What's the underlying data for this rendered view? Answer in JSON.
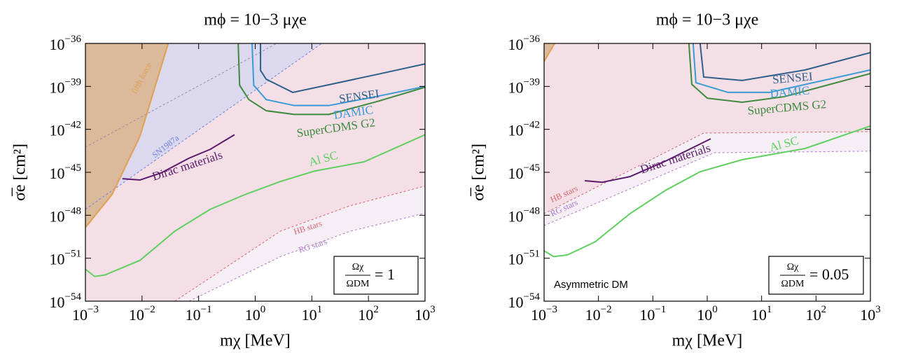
{
  "chart_data": [
    {
      "type": "line",
      "title": "mϕ = 10−3 μχe",
      "xlabel": "mχ [MeV]",
      "ylabel": "σ̅e [cm²]",
      "log_x": true,
      "log_y": true,
      "xlim": [
        0.001,
        1000
      ],
      "ylim": [
        1e-54,
        1e-36
      ],
      "xticks": [
        {
          "value": 0.001,
          "label": "10−3"
        },
        {
          "value": 0.01,
          "label": "10−2"
        },
        {
          "value": 0.1,
          "label": "10−1"
        },
        {
          "value": 1,
          "label": "100"
        },
        {
          "value": 10,
          "label": "101"
        },
        {
          "value": 100,
          "label": "102"
        },
        {
          "value": 1000,
          "label": "103"
        }
      ],
      "yticks": [
        {
          "value": 1e-36,
          "label": "10−36"
        },
        {
          "value": 1e-39,
          "label": "10−39"
        },
        {
          "value": 1e-42,
          "label": "10−42"
        },
        {
          "value": 1e-45,
          "label": "10−45"
        },
        {
          "value": 1e-48,
          "label": "10−48"
        },
        {
          "value": 1e-51,
          "label": "10−51"
        },
        {
          "value": 1e-54,
          "label": "10−54"
        }
      ],
      "series": [
        {
          "name": "RG stars",
          "color": "#b07acc",
          "style": "dashed",
          "fill": "#f5eef4",
          "x": [
            0.068,
            2.8,
            48,
            1000
          ],
          "values": [
            1e-54,
            1.3e-51,
            7.8e-50,
            1.4e-48
          ]
        },
        {
          "name": "HB stars",
          "color": "#d9646e",
          "style": "dashed",
          "fill": "#f3dfe5",
          "x": [
            0.038,
            2.8,
            48,
            1000
          ],
          "values": [
            1e-54,
            7.8e-50,
            4.7e-48,
            1.1e-46
          ]
        },
        {
          "name": "SN1987a",
          "color": "#6a7fe0",
          "style": "dashed",
          "fill": "#dcd8ee",
          "x": [
            0.001,
            15
          ],
          "values": [
            2.6e-48,
            1e-36
          ]
        },
        {
          "color": "#9a8a9e",
          "style": "dashed",
          "x": [
            0.001,
            2.4
          ],
          "values": [
            5.7e-44,
            1e-36
          ]
        },
        {
          "name": "fifth force",
          "color": "#e0a050",
          "style": "solid",
          "fill": "#dbb99b",
          "x": [
            0.001,
            0.00295,
            0.0092,
            0.029
          ],
          "values": [
            1.4e-49,
            2.8e-47,
            3.3e-43,
            1e-36
          ]
        },
        {
          "name": "Dirac materials",
          "color": "#5b1a6b",
          "style": "solid",
          "x": [
            0.0045,
            0.0092,
            0.022,
            0.068,
            0.16,
            0.43
          ],
          "values": [
            3.6e-46,
            2.9e-46,
            9.3e-46,
            9.8e-45,
            4e-44,
            4.2e-43
          ]
        },
        {
          "name": "Al SC",
          "color": "#5fcf5f",
          "style": "solid",
          "x": [
            0.001,
            0.00145,
            0.0022,
            0.0092,
            0.038,
            0.16,
            0.66,
            2.8,
            11,
            84,
            1000
          ],
          "values": [
            1.7e-52,
            5.3e-53,
            6.7e-53,
            7.1e-52,
            7.8e-50,
            2.6e-48,
            2.8e-47,
            2.3e-46,
            1.2e-45,
            5.4e-45,
            4.2e-43
          ]
        },
        {
          "name": "SENSEI",
          "color": "#2e5f8a",
          "style": "solid",
          "x": [
            1.24,
            1.24,
            1.56,
            4.6,
            20,
            150,
            1000
          ],
          "values": [
            1e-36,
            1.3e-38,
            3.2e-39,
            3.8e-40,
            1.3e-39,
            7.2e-39,
            3.7e-38
          ]
        },
        {
          "name": "DAMIC",
          "color": "#3b9bd6",
          "style": "solid",
          "x": [
            0.88,
            0.94,
            1.56,
            4.9,
            20,
            150,
            1000
          ],
          "values": [
            1e-36,
            1.2e-39,
            1.2e-40,
            4.6e-41,
            4.6e-41,
            2.1e-40,
            9.8e-40
          ]
        },
        {
          "name": "SuperCDMS G2",
          "color": "#3d8a3d",
          "style": "solid",
          "x": [
            0.5,
            0.53,
            0.77,
            1.56,
            4.9,
            20,
            150,
            1000
          ],
          "values": [
            1e-36,
            1.2e-39,
            1.2e-40,
            2e-41,
            1.1e-41,
            1.1e-41,
            9.3e-41,
            8.7e-40
          ]
        }
      ],
      "annotation": {
        "numerator": "Ωχ",
        "denominator": "ΩDM",
        "rhs": "= 1"
      }
    },
    {
      "type": "line",
      "title": "mϕ = 10−3 μχe",
      "xlabel": "mχ [MeV]",
      "ylabel": "σ̅e [cm²]",
      "log_x": true,
      "log_y": true,
      "xlim": [
        0.001,
        1000
      ],
      "ylim": [
        1e-54,
        1e-36
      ],
      "xticks": [
        {
          "value": 0.001,
          "label": "10−3"
        },
        {
          "value": 0.01,
          "label": "10−2"
        },
        {
          "value": 0.1,
          "label": "10−1"
        },
        {
          "value": 1,
          "label": "100"
        },
        {
          "value": 10,
          "label": "101"
        },
        {
          "value": 100,
          "label": "102"
        },
        {
          "value": 1000,
          "label": "103"
        }
      ],
      "yticks": [
        {
          "value": 1e-36,
          "label": "10−36"
        },
        {
          "value": 1e-39,
          "label": "10−39"
        },
        {
          "value": 1e-42,
          "label": "10−42"
        },
        {
          "value": 1e-45,
          "label": "10−45"
        },
        {
          "value": 1e-48,
          "label": "10−48"
        },
        {
          "value": 1e-51,
          "label": "10−51"
        },
        {
          "value": 1e-54,
          "label": "10−54"
        }
      ],
      "series": [
        {
          "name": "RG stars",
          "color": "#b07acc",
          "style": "dashed",
          "fill": "#f5eef4",
          "x": [
            0.001,
            1.34,
            1000
          ],
          "values": [
            1.9e-49,
            2.3e-44,
            3e-44
          ]
        },
        {
          "name": "HB stars",
          "color": "#d9646e",
          "style": "dashed",
          "fill": "#f3dfe5",
          "x": [
            0.001,
            0.86,
            1000
          ],
          "values": [
            1.3e-48,
            5.5e-43,
            6.9e-43
          ]
        },
        {
          "color": "#e0a050",
          "style": "solid",
          "fill": "#dbb99b",
          "x": [
            0.001,
            0.00156
          ],
          "values": [
            5.4e-38,
            1e-36
          ]
        },
        {
          "name": "Dirac materials",
          "color": "#5b1a6b",
          "style": "solid",
          "x": [
            0.0056,
            0.0117,
            0.038,
            0.17,
            1.16
          ],
          "values": [
            2.6e-46,
            2e-46,
            5e-46,
            6e-45,
            2.2e-43
          ]
        },
        {
          "name": "Al SC",
          "color": "#5fcf5f",
          "style": "solid",
          "x": [
            0.001,
            0.0015,
            0.0027,
            0.0087,
            0.038,
            0.17,
            0.74,
            4.4,
            63,
            1000
          ],
          "values": [
            3.3e-51,
            1.3e-51,
            1.7e-51,
            1.4e-50,
            1.3e-48,
            5.4e-47,
            1.1e-45,
            7.6e-45,
            4.6e-44,
            1.7e-42
          ]
        },
        {
          "name": "SENSEI",
          "color": "#2e5f8a",
          "style": "solid",
          "x": [
            0.74,
            0.86,
            4.4,
            63,
            1000
          ],
          "values": [
            1e-36,
            4.5e-39,
            2.6e-39,
            1.4e-38,
            2.3e-37
          ]
        },
        {
          "name": "DAMIC",
          "color": "#3b9bd6",
          "style": "solid",
          "x": [
            0.55,
            0.62,
            2.4,
            14,
            1000
          ],
          "values": [
            1e-36,
            1.8e-39,
            3.8e-40,
            3.8e-40,
            1.4e-38
          ]
        },
        {
          "name": "SuperCDMS G2",
          "color": "#3d8a3d",
          "style": "solid",
          "x": [
            0.46,
            0.52,
            1,
            4.4,
            26,
            1000
          ],
          "values": [
            1e-36,
            1.4e-39,
            1.5e-40,
            7.8e-41,
            1.9e-40,
            7.9e-39
          ]
        }
      ],
      "annotation": {
        "numerator": "Ωχ",
        "denominator": "ΩDM",
        "rhs": "= 0.05"
      },
      "note": "Asymmetric DM"
    }
  ]
}
